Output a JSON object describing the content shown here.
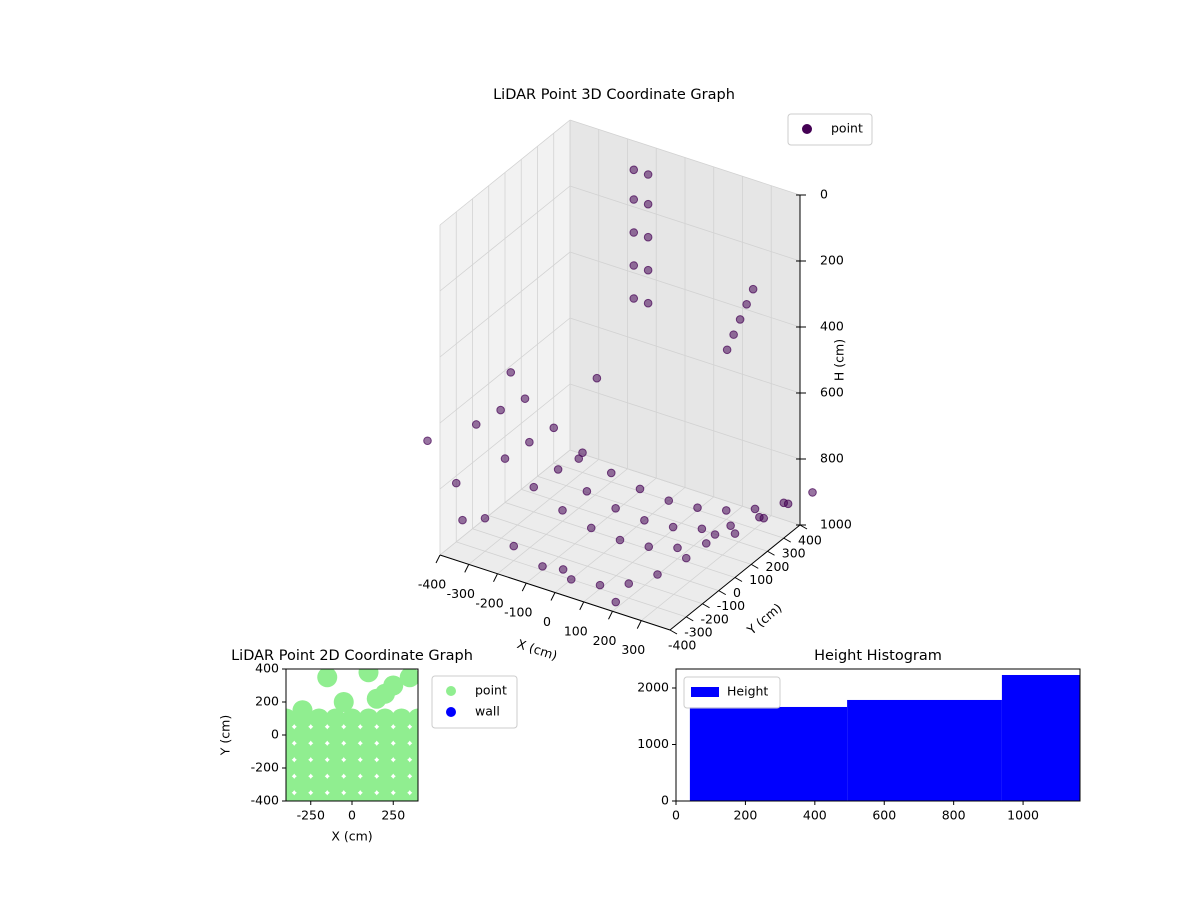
{
  "chart_data": [
    {
      "type": "scatter3d",
      "title": "LiDAR Point 3D Coordinate Graph",
      "xlabel": "X (cm)",
      "ylabel": "Y (cm)",
      "zlabel": "H (cm)",
      "xlim": [
        -400,
        400
      ],
      "ylim": [
        -400,
        400
      ],
      "zlim": [
        0,
        1000
      ],
      "z_inverted": true,
      "xticks": [
        -400,
        -300,
        -200,
        -100,
        0,
        100,
        200,
        300
      ],
      "yticks": [
        -400,
        -300,
        -200,
        -100,
        0,
        100,
        200,
        300,
        400
      ],
      "zticks": [
        0,
        200,
        400,
        600,
        800,
        1000
      ],
      "grid": true,
      "legend": "upper right",
      "series": [
        {
          "name": "point",
          "color": "#440154",
          "x": [
            -500,
            -400,
            -300,
            -200,
            -100,
            0,
            100,
            200,
            300,
            400,
            500,
            -500,
            -400,
            -300,
            -200,
            -100,
            0,
            100,
            200,
            300,
            400,
            500,
            -500,
            -400,
            -300,
            -200,
            -100,
            0,
            100,
            200,
            300,
            400,
            500,
            -500,
            -400,
            -300,
            -200,
            -100,
            0,
            100,
            200,
            300,
            400,
            500,
            -150,
            -150,
            -150,
            -150,
            -150,
            -100,
            -100,
            -100,
            -100,
            -100,
            350,
            350,
            350,
            350,
            350,
            -350,
            -250,
            -380,
            0,
            200,
            -200
          ],
          "y": [
            0,
            0,
            0,
            0,
            0,
            0,
            0,
            0,
            0,
            0,
            0,
            -300,
            -300,
            -300,
            -300,
            -300,
            -300,
            -300,
            -300,
            -300,
            -300,
            -300,
            300,
            300,
            300,
            300,
            300,
            300,
            300,
            300,
            300,
            300,
            300,
            150,
            150,
            150,
            150,
            150,
            150,
            150,
            150,
            150,
            150,
            150,
            350,
            350,
            350,
            350,
            350,
            350,
            350,
            350,
            350,
            350,
            200,
            160,
            120,
            80,
            40,
            -350,
            300,
            0,
            -350,
            -380,
            100
          ],
          "z": [
            792,
            867,
            925,
            967,
            992,
            1000,
            992,
            967,
            925,
            867,
            792,
            722,
            822,
            900,
            956,
            989,
            1000,
            989,
            956,
            900,
            822,
            722,
            833,
            893,
            940,
            973,
            993,
            1000,
            993,
            973,
            940,
            893,
            833,
            808,
            877,
            931,
            969,
            992,
            1000,
            992,
            969,
            931,
            877,
            808,
            60,
            150,
            250,
            350,
            450,
            60,
            150,
            250,
            350,
            450,
            220,
            250,
            280,
            310,
            340,
            900,
            700,
            600,
            950,
            980,
            850
          ]
        }
      ]
    },
    {
      "type": "scatter",
      "title": "LiDAR Point 2D Coordinate Graph",
      "xlabel": "X (cm)",
      "ylabel": "Y (cm)",
      "xlim": [
        -400,
        400
      ],
      "ylim": [
        -400,
        400
      ],
      "xticks": [
        -250,
        0,
        250
      ],
      "yticks": [
        -400,
        -200,
        0,
        200,
        400
      ],
      "legend": "outside right",
      "series": [
        {
          "name": "point",
          "color": "#90ee90",
          "x": [
            -400,
            -300,
            -200,
            -100,
            0,
            100,
            200,
            300,
            400,
            -400,
            -300,
            -200,
            -100,
            0,
            100,
            200,
            300,
            400,
            -400,
            -300,
            -200,
            -100,
            0,
            100,
            200,
            300,
            400,
            -400,
            -300,
            -200,
            -100,
            0,
            100,
            200,
            300,
            400,
            -400,
            -300,
            -200,
            -100,
            0,
            100,
            200,
            300,
            400,
            -400,
            -300,
            -200,
            -100,
            0,
            100,
            200,
            300,
            400,
            -300,
            -150,
            100,
            250,
            350,
            -50,
            150,
            200
          ],
          "y": [
            -400,
            -400,
            -400,
            -400,
            -400,
            -400,
            -400,
            -400,
            -400,
            -300,
            -300,
            -300,
            -300,
            -300,
            -300,
            -300,
            -300,
            -300,
            -200,
            -200,
            -200,
            -200,
            -200,
            -200,
            -200,
            -200,
            -200,
            -100,
            -100,
            -100,
            -100,
            -100,
            -100,
            -100,
            -100,
            -100,
            0,
            0,
            0,
            0,
            0,
            0,
            0,
            0,
            0,
            100,
            100,
            100,
            100,
            100,
            100,
            100,
            100,
            100,
            150,
            350,
            380,
            300,
            350,
            200,
            220,
            250
          ]
        },
        {
          "name": "wall",
          "color": "#0000ff",
          "x": [],
          "y": []
        }
      ]
    },
    {
      "type": "histogram",
      "title": "Height Histogram",
      "bins": [
        40,
        493,
        939,
        1164
      ],
      "values": [
        1664,
        1788,
        2230
      ],
      "xlim": [
        0,
        1164
      ],
      "ylim": [
        0,
        2336
      ],
      "xticks": [
        0,
        200,
        400,
        600,
        800,
        1000
      ],
      "yticks": [
        0,
        1000,
        2000
      ],
      "legend": "upper left",
      "series_name": "Height",
      "color": "#0000ff"
    }
  ]
}
